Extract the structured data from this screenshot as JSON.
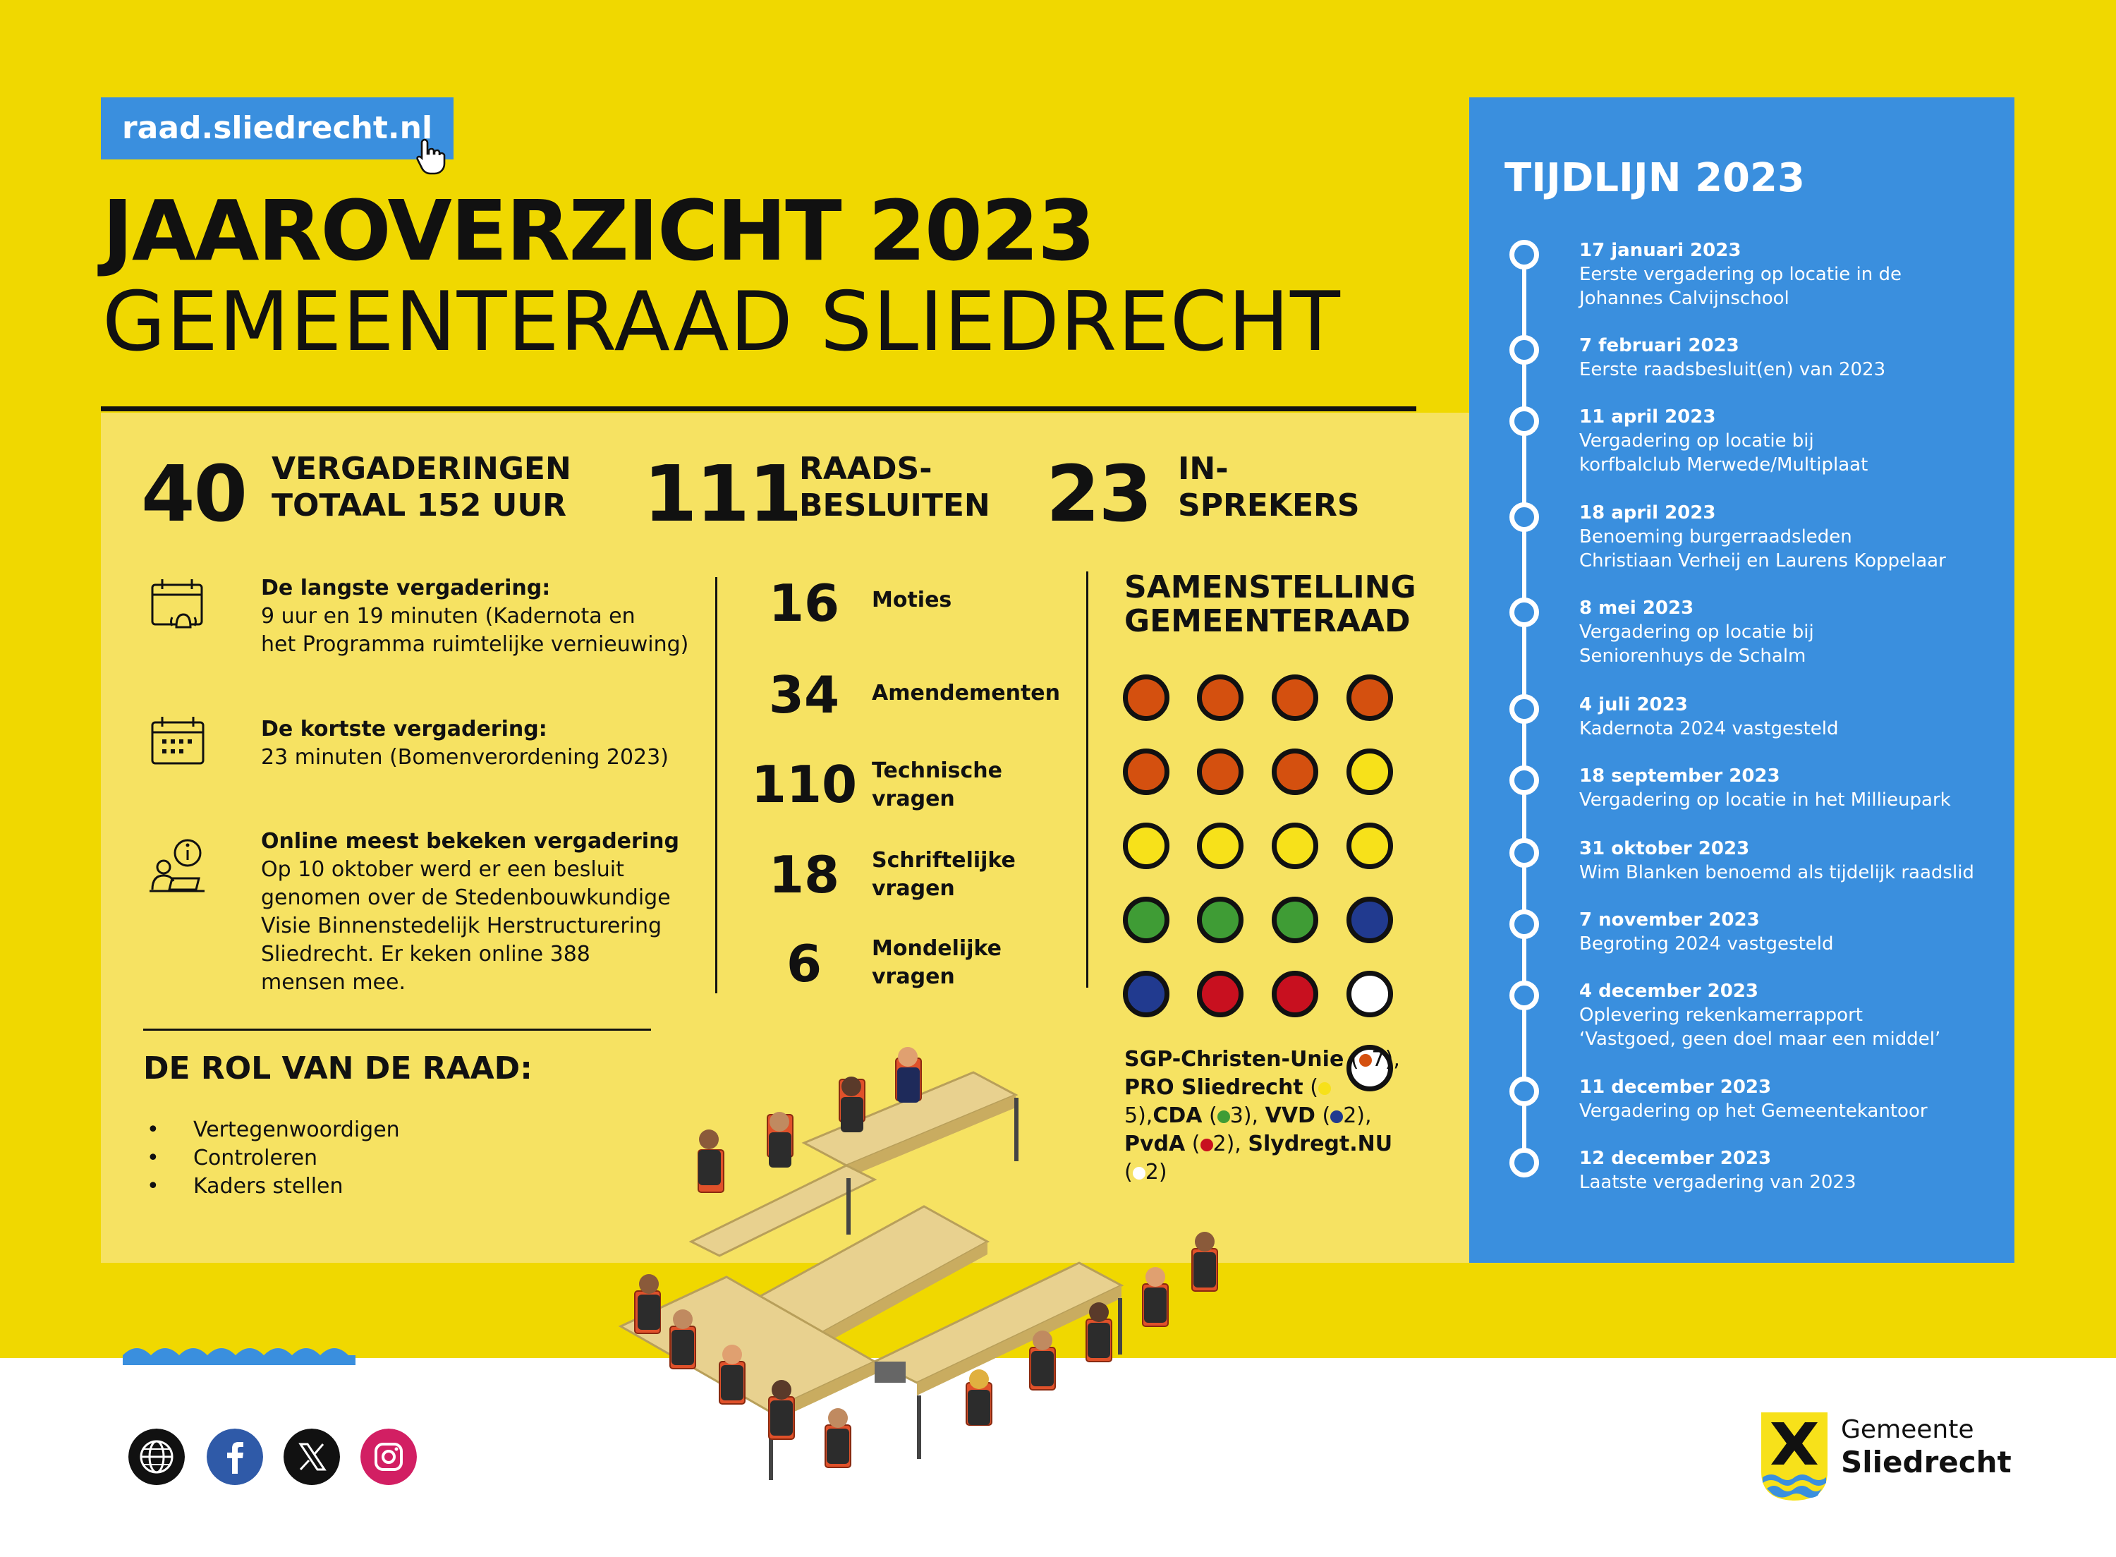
{
  "header": {
    "url": "raad.sliedrecht.nl",
    "title_line1": "JAAROVERZICHT 2023",
    "title_line2": "GEMEENTERAAD SLIEDRECHT"
  },
  "stats": [
    {
      "number": "40",
      "label_line1": "VERGADERINGEN",
      "label_line2": "TOTAAL 152 UUR"
    },
    {
      "number": "111",
      "label_line1": "RAADS-",
      "label_line2": "BESLUITEN"
    },
    {
      "number": "23",
      "label_line1": "IN-",
      "label_line2": "SPREKERS"
    }
  ],
  "facts": [
    {
      "icon": "calendar-alarm-icon",
      "heading": "De langste vergadering:",
      "text": "9 uur en 19 minuten (Kadernota en\nhet Programma ruimtelijke vernieuwing)"
    },
    {
      "icon": "calendar-icon",
      "heading": "De kortste vergadering:",
      "text": "23 minuten (Bomenverordening 2023)"
    },
    {
      "icon": "online-info-icon",
      "heading": "Online meest bekeken vergadering",
      "text": "Op 10 oktober werd er een besluit\ngenomen over de Stedenbouwkundige\nVisie Binnenstedelijk Herstructurering\nSliedrecht. Er keken online 388\nmensen mee."
    }
  ],
  "counts": [
    {
      "number": "16",
      "label": "Moties"
    },
    {
      "number": "34",
      "label": "Amendementen"
    },
    {
      "number": "110",
      "label": "Technische\nvragen"
    },
    {
      "number": "18",
      "label": "Schriftelijke\nvragen"
    },
    {
      "number": "6",
      "label": "Mondelijke\nvragen"
    }
  ],
  "composition": {
    "title_line1": "SAMENSTELLING",
    "title_line2": "GEMEENTERAAD",
    "colors": {
      "SGP-Christen-Unie": "#d4500f",
      "PRO Sliedrecht": "#f7e11a",
      "CDA": "#3f9c35",
      "VVD": "#213a8f",
      "PvdA": "#c8101f",
      "Slydregt.NU": "#ffffff"
    },
    "seats": [
      "SGP-Christen-Unie",
      "SGP-Christen-Unie",
      "SGP-Christen-Unie",
      "SGP-Christen-Unie",
      "SGP-Christen-Unie",
      "SGP-Christen-Unie",
      "SGP-Christen-Unie",
      "PRO Sliedrecht",
      "PRO Sliedrecht",
      "PRO Sliedrecht",
      "PRO Sliedrecht",
      "PRO Sliedrecht",
      "CDA",
      "CDA",
      "CDA",
      "VVD",
      "VVD",
      "PvdA",
      "PvdA",
      "Slydregt.NU",
      "Slydregt.NU"
    ],
    "legend": [
      {
        "party": "SGP-Christen-Unie",
        "open": " (",
        "count": "7",
        "close": "), "
      },
      {
        "party": "PRO Sliedrecht",
        "open": " (",
        "count": "5",
        "close": "),"
      },
      {
        "party": "CDA",
        "open": " (",
        "count": "3",
        "close": "), "
      },
      {
        "party": "VVD",
        "open": " (",
        "count": "2",
        "close": "), "
      },
      {
        "party": "PvdA",
        "open": " (",
        "count": "2",
        "close": "), "
      },
      {
        "party": "Slydregt.NU",
        "open": " (",
        "count": "2",
        "close": ")"
      }
    ]
  },
  "role": {
    "title": "DE ROL VAN DE RAAD:",
    "items": [
      "Vertegenwoordigen",
      "Controleren",
      "Kaders stellen"
    ]
  },
  "timeline": {
    "title": "TIJDLIJN 2023",
    "events": [
      {
        "date": "17 januari 2023",
        "text": "Eerste vergadering op locatie in de\nJohannes Calvijnschool"
      },
      {
        "date": "7 februari 2023",
        "text": "Eerste raadsbesluit(en) van 2023"
      },
      {
        "date": "11 april 2023",
        "text": "Vergadering op locatie bij\nkorfbalclub Merwede/Multiplaat"
      },
      {
        "date": "18 april 2023",
        "text": "Benoeming burgerraadsleden\nChristiaan Verheij en Laurens Koppelaar"
      },
      {
        "date": "8 mei 2023",
        "text": "Vergadering op locatie bij\nSeniorenhuys de Schalm"
      },
      {
        "date": "4 juli 2023",
        "text": "Kadernota 2024 vastgesteld"
      },
      {
        "date": "18 september 2023",
        "text": "Vergadering op locatie in het Millieupark"
      },
      {
        "date": "31 oktober 2023",
        "text": "Wim Blanken benoemd als tijdelijk raadslid"
      },
      {
        "date": "7 november 2023",
        "text": "Begroting 2024 vastgesteld"
      },
      {
        "date": "4 december 2023",
        "text": "Oplevering rekenkamerrapport\n‘Vastgoed, geen doel maar een middel’"
      },
      {
        "date": "11 december 2023",
        "text": "Vergadering op het Gemeentekantoor"
      },
      {
        "date": "12 december 2023",
        "text": "Laatste vergadering van 2023"
      }
    ]
  },
  "social": [
    {
      "icon": "globe-icon",
      "color": "#111111"
    },
    {
      "icon": "facebook-icon",
      "color": "#2f5aa8"
    },
    {
      "icon": "x-icon",
      "color": "#111111"
    },
    {
      "icon": "instagram-icon",
      "color": "#d21f63"
    }
  ],
  "logo": {
    "line1": "Gemeente",
    "line2": "Sliedrecht"
  },
  "colors": {
    "yellow": "#f0d800",
    "panel_yellow": "#f6e262",
    "blue": "#3a8fde"
  }
}
